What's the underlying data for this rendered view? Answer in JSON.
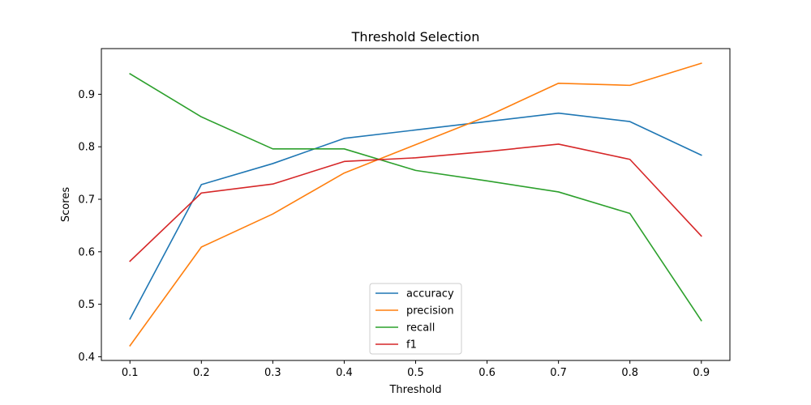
{
  "chart_data": {
    "type": "line",
    "title": "Threshold Selection",
    "xlabel": "Threshold",
    "ylabel": "Scores",
    "x": [
      0.1,
      0.2,
      0.3,
      0.4,
      0.5,
      0.6,
      0.7,
      0.8,
      0.9
    ],
    "xlim": [
      0.06,
      0.94
    ],
    "ylim": [
      0.393,
      0.987
    ],
    "xticks": [
      "0.1",
      "0.2",
      "0.3",
      "0.4",
      "0.5",
      "0.6",
      "0.7",
      "0.8",
      "0.9"
    ],
    "yticks": [
      "0.4",
      "0.5",
      "0.6",
      "0.7",
      "0.8",
      "0.9"
    ],
    "grid": false,
    "legend_position": "bottom-center",
    "series": [
      {
        "name": "accuracy",
        "color": "#1f77b4",
        "values": [
          0.472,
          0.728,
          0.768,
          0.816,
          0.832,
          0.848,
          0.864,
          0.848,
          0.784
        ]
      },
      {
        "name": "precision",
        "color": "#ff7f0e",
        "values": [
          0.421,
          0.609,
          0.672,
          0.75,
          0.804,
          0.858,
          0.921,
          0.917,
          0.959
        ]
      },
      {
        "name": "recall",
        "color": "#2ca02c",
        "values": [
          0.939,
          0.857,
          0.796,
          0.796,
          0.755,
          0.735,
          0.714,
          0.673,
          0.469
        ]
      },
      {
        "name": "f1",
        "color": "#d62728",
        "values": [
          0.582,
          0.712,
          0.729,
          0.772,
          0.779,
          0.791,
          0.805,
          0.776,
          0.63
        ]
      }
    ]
  }
}
